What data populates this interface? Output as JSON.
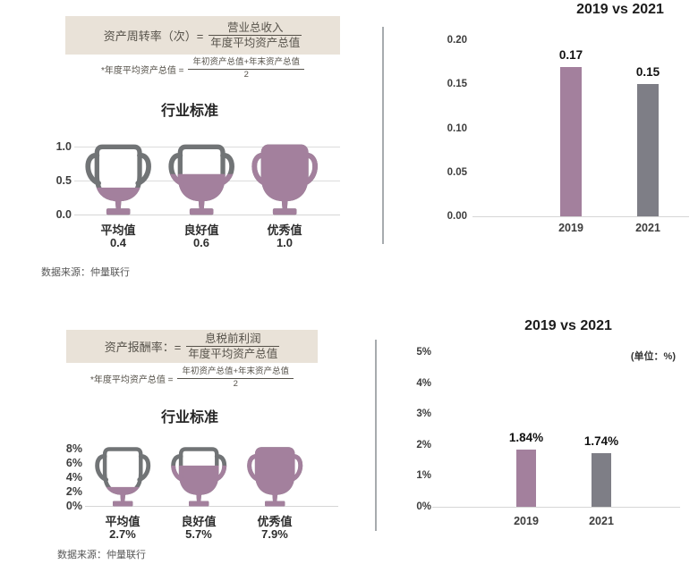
{
  "colors": {
    "purple": "#a3809d",
    "bar_gray": "#7e7e86",
    "trophy_gray": "#717476",
    "formula_bg": "#e9e2d8",
    "formula_text": "#56524a",
    "grid": "#dcdcdc",
    "axis_text": "#3d3d3d",
    "divider": "#a7abae",
    "source_text": "#575757"
  },
  "sections": [
    {
      "formula": {
        "label": "资产周转率（次）=",
        "numerator": "营业总收入",
        "denominator": "年度平均资产总值"
      },
      "footnote": {
        "label": "*年度平均资产总值 =",
        "numerator": "年初资产总值+年末资产总值",
        "denominator": "2"
      },
      "industry_title": "行业标准",
      "source": "数据来源：仲量联行",
      "comparison_title": "2019 vs 2021",
      "unit_note": ""
    },
    {
      "formula": {
        "label": "资产报酬率：=",
        "numerator": "息税前利润",
        "denominator": "年度平均资产总值"
      },
      "footnote": {
        "label": "*年度平均资产总值 =",
        "numerator": "年初资产总值+年末资产总值",
        "denominator": "2"
      },
      "industry_title": "行业标准",
      "source": "数据来源：仲量联行",
      "comparison_title": "2019 vs 2021",
      "unit_note": "(单位：%)"
    }
  ],
  "chart_data": [
    {
      "id": "turnover-industry-standard",
      "type": "bar",
      "style": "trophy-pictogram",
      "title": "行业标准",
      "categories": [
        "平均值",
        "良好值",
        "优秀值"
      ],
      "values": [
        0.4,
        0.6,
        1.0
      ],
      "value_labels": [
        "0.4",
        "0.6",
        "1.0"
      ],
      "ylim": [
        0,
        1.0
      ],
      "ytick_values": [
        1.0,
        0.5,
        0.0
      ],
      "ytick_labels": [
        "1.0",
        "0.5",
        "0.0"
      ],
      "grid": true,
      "source": "数据来源：仲量联行"
    },
    {
      "id": "turnover-comparison",
      "type": "bar",
      "title": "2019 vs 2021",
      "categories": [
        "2019",
        "2021"
      ],
      "values": [
        0.17,
        0.15
      ],
      "value_labels": [
        "0.17",
        "0.15"
      ],
      "ylim": [
        0,
        0.2
      ],
      "ytick_values": [
        0.2,
        0.15,
        0.1,
        0.05,
        0.0
      ],
      "ytick_labels": [
        "0.20",
        "0.15",
        "0.10",
        "0.05",
        "0.00"
      ],
      "bar_colors": [
        "#a3809d",
        "#7e7e86"
      ],
      "grid": false,
      "legend": "none"
    },
    {
      "id": "roa-industry-standard",
      "type": "bar",
      "style": "trophy-pictogram",
      "title": "行业标准",
      "categories": [
        "平均值",
        "良好值",
        "优秀值"
      ],
      "values": [
        2.7,
        5.7,
        7.9
      ],
      "value_labels": [
        "2.7%",
        "5.7%",
        "7.9%"
      ],
      "ylim": [
        0,
        8
      ],
      "ytick_values": [
        8,
        6,
        4,
        2,
        0
      ],
      "ytick_labels": [
        "8%",
        "6%",
        "4%",
        "2%",
        "0%"
      ],
      "grid": false,
      "source": "数据来源：仲量联行"
    },
    {
      "id": "roa-comparison",
      "type": "bar",
      "title": "2019 vs 2021",
      "unit_note": "(单位：%)",
      "categories": [
        "2019",
        "2021"
      ],
      "values": [
        1.84,
        1.74
      ],
      "value_labels": [
        "1.84%",
        "1.74%"
      ],
      "ylim": [
        0,
        5
      ],
      "ytick_values": [
        5,
        4,
        3,
        2,
        1,
        0
      ],
      "ytick_labels": [
        "5%",
        "4%",
        "3%",
        "2%",
        "1%",
        "0%"
      ],
      "bar_colors": [
        "#a3809d",
        "#7e7e86"
      ],
      "grid": false,
      "legend": "none"
    }
  ]
}
